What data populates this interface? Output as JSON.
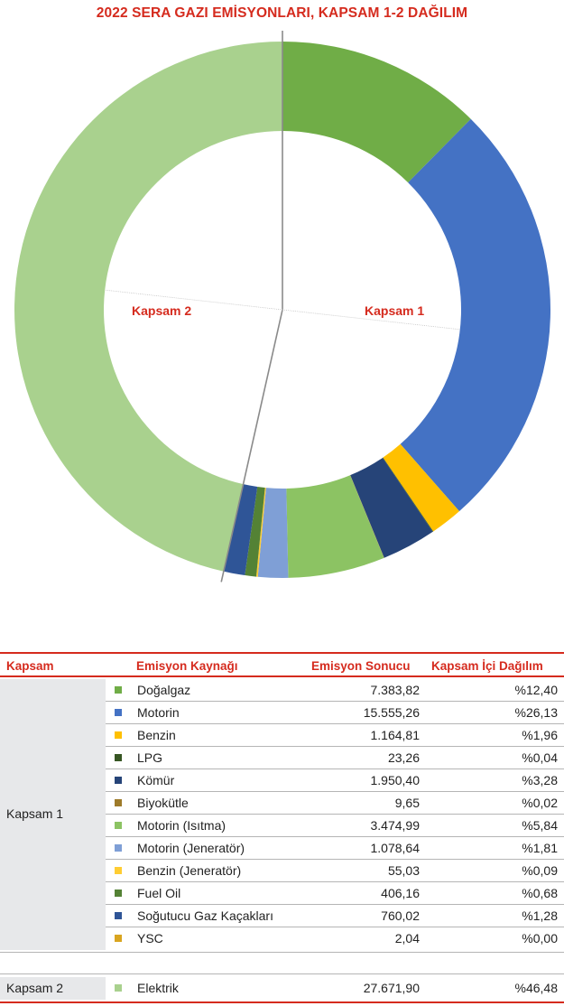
{
  "title": "2022 SERA GAZI EMİSYONLARI, KAPSAM 1-2 DAĞILIM",
  "chart_data": {
    "type": "pie",
    "title": "2022 SERA GAZI EMİSYONLARI, KAPSAM 1-2 DAĞILIM",
    "center_labels": {
      "left": "Kapsam 2",
      "right": "Kapsam 1"
    },
    "slices": [
      {
        "label": "Doğalgaz",
        "value": 7383.82,
        "color": "#70ad47"
      },
      {
        "label": "Motorin",
        "value": 15555.26,
        "color": "#4472c4"
      },
      {
        "label": "Benzin",
        "value": 1164.81,
        "color": "#ffc000"
      },
      {
        "label": "LPG",
        "value": 23.26,
        "color": "#375623"
      },
      {
        "label": "Kömür",
        "value": 1950.4,
        "color": "#264478"
      },
      {
        "label": "Biyokütle",
        "value": 9.65,
        "color": "#9e7b2a"
      },
      {
        "label": "Motorin (Isıtma)",
        "value": 3474.99,
        "color": "#8cc363"
      },
      {
        "label": "Motorin (Jeneratör)",
        "value": 1078.64,
        "color": "#7f9fd6"
      },
      {
        "label": "Benzin (Jeneratör)",
        "value": 55.03,
        "color": "#ffcd33"
      },
      {
        "label": "Fuel Oil",
        "value": 406.16,
        "color": "#548235"
      },
      {
        "label": "Soğutucu Gaz Kaçakları",
        "value": 760.02,
        "color": "#2f5597"
      },
      {
        "label": "YSC",
        "value": 2.04,
        "color": "#d9a520"
      },
      {
        "label": "Elektrik",
        "value": 27671.9,
        "color": "#a9d18e"
      }
    ]
  },
  "table": {
    "headers": {
      "scope": "Kapsam",
      "source": "Emisyon Kaynağı",
      "result": "Emisyon Sonucu",
      "share": "Kapsam İçi Dağılım"
    },
    "groups": [
      {
        "name": "Kapsam 1",
        "rows": [
          {
            "source": "Doğalgaz",
            "value": "7.383,82",
            "share": "%12,40",
            "color": "#70ad47"
          },
          {
            "source": "Motorin",
            "value": "15.555,26",
            "share": "%26,13",
            "color": "#4472c4"
          },
          {
            "source": "Benzin",
            "value": "1.164,81",
            "share": "%1,96",
            "color": "#ffc000"
          },
          {
            "source": "LPG",
            "value": "23,26",
            "share": "%0,04",
            "color": "#375623"
          },
          {
            "source": "Kömür",
            "value": "1.950,40",
            "share": "%3,28",
            "color": "#264478"
          },
          {
            "source": "Biyokütle",
            "value": "9,65",
            "share": "%0,02",
            "color": "#9e7b2a"
          },
          {
            "source": "Motorin (Isıtma)",
            "value": "3.474,99",
            "share": "%5,84",
            "color": "#8cc363"
          },
          {
            "source": "Motorin (Jeneratör)",
            "value": "1.078,64",
            "share": "%1,81",
            "color": "#7f9fd6"
          },
          {
            "source": "Benzin (Jeneratör)",
            "value": "55,03",
            "share": "%0,09",
            "color": "#ffcd33"
          },
          {
            "source": "Fuel Oil",
            "value": "406,16",
            "share": "%0,68",
            "color": "#548235"
          },
          {
            "source": "Soğutucu Gaz Kaçakları",
            "value": "760,02",
            "share": "%1,28",
            "color": "#2f5597"
          },
          {
            "source": "YSC",
            "value": "2,04",
            "share": "%0,00",
            "color": "#d9a520"
          }
        ]
      },
      {
        "name": "Kapsam 2",
        "rows": [
          {
            "source": "Elektrik",
            "value": "27.671,90",
            "share": "%46,48",
            "color": "#a9d18e"
          }
        ]
      }
    ]
  }
}
